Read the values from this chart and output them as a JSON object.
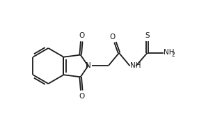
{
  "bg_color": "#ffffff",
  "line_color": "#1a1a1a",
  "lw": 1.3,
  "fs": 7.5,
  "fss": 5.5,
  "figsize": [
    3.19,
    1.92
  ],
  "dpi": 100,
  "xlim": [
    0,
    10
  ],
  "ylim": [
    0,
    6.0
  ]
}
